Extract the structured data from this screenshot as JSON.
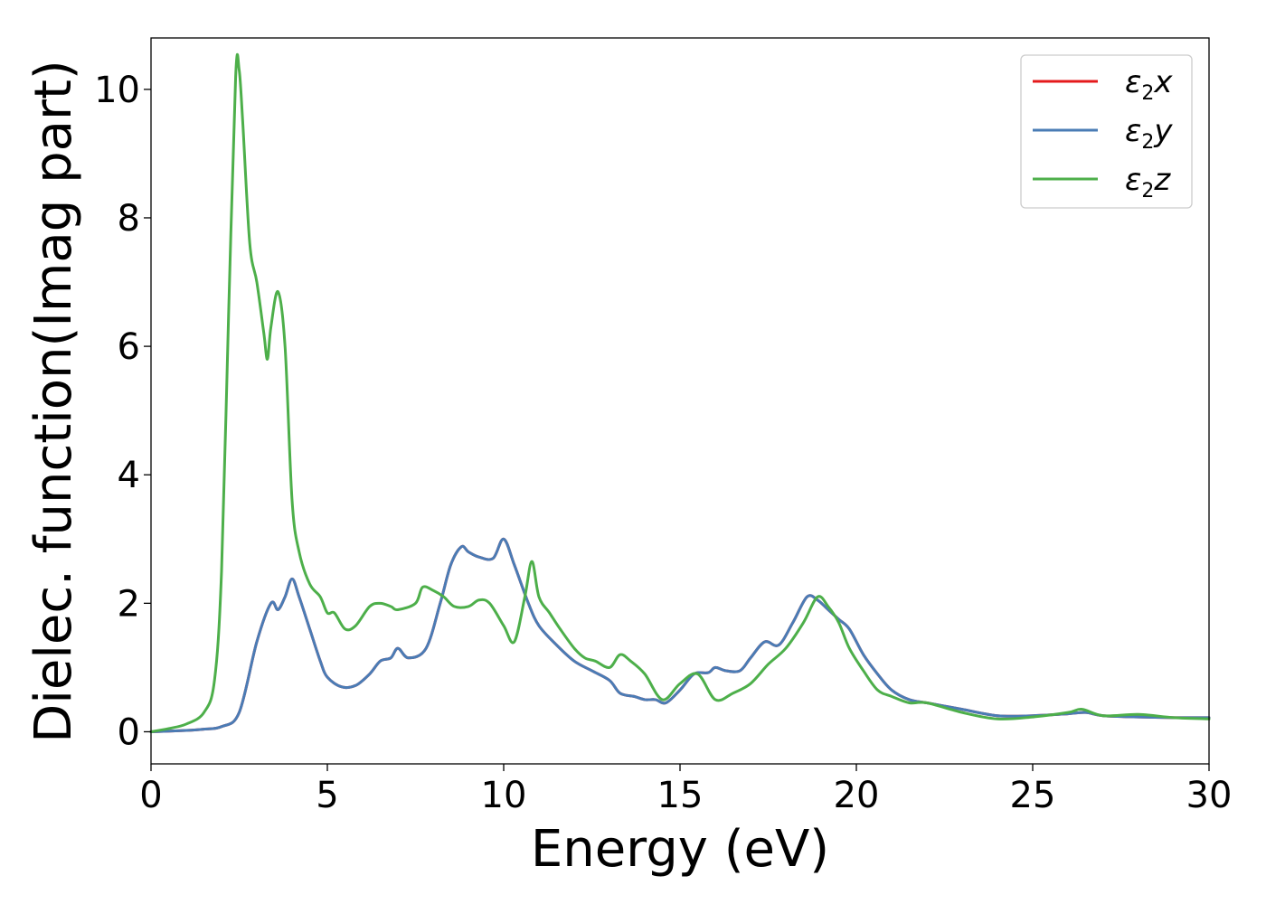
{
  "chart_data": {
    "type": "line",
    "title": "",
    "xlabel": "Energy (eV)",
    "ylabel": "Dielec. function(Imag part)",
    "xlim": [
      0,
      30
    ],
    "ylim": [
      -0.5,
      10.8
    ],
    "xticks": [
      0,
      5,
      10,
      15,
      20,
      25,
      30
    ],
    "yticks": [
      0,
      2,
      4,
      6,
      8,
      10
    ],
    "grid": false,
    "legend_position": "top-right",
    "series": [
      {
        "name": "ε2x",
        "legend_base": "ε",
        "legend_sub": "2",
        "legend_var": "x",
        "color": "#e41a1c",
        "x": [
          0,
          1,
          1.5,
          2,
          2.5,
          3,
          3.4,
          3.6,
          3.8,
          4.0,
          4.2,
          4.5,
          4.8,
          5.0,
          5.4,
          5.8,
          6.2,
          6.5,
          6.8,
          7.0,
          7.3,
          7.8,
          8.2,
          8.5,
          8.8,
          9.0,
          9.3,
          9.7,
          10.0,
          10.3,
          10.7,
          11.0,
          11.5,
          12.0,
          12.5,
          13.0,
          13.3,
          13.7,
          14.0,
          14.3,
          14.6,
          15.0,
          15.4,
          15.8,
          16.0,
          16.3,
          16.7,
          17.0,
          17.4,
          17.8,
          18.2,
          18.6,
          18.9,
          19.2,
          19.5,
          19.8,
          20.2,
          20.6,
          21.0,
          21.5,
          22.0,
          22.5,
          23.0,
          24.0,
          25.0,
          26.0,
          26.5,
          27.0,
          28.0,
          29.0,
          30.0
        ],
        "values": [
          0.0,
          0.02,
          0.04,
          0.08,
          0.3,
          1.4,
          2.0,
          1.9,
          2.1,
          2.38,
          2.1,
          1.6,
          1.1,
          0.85,
          0.7,
          0.72,
          0.9,
          1.1,
          1.15,
          1.3,
          1.15,
          1.3,
          2.0,
          2.6,
          2.88,
          2.8,
          2.72,
          2.7,
          3.0,
          2.6,
          2.0,
          1.65,
          1.35,
          1.1,
          0.95,
          0.8,
          0.6,
          0.55,
          0.5,
          0.5,
          0.45,
          0.65,
          0.9,
          0.92,
          1.0,
          0.95,
          0.95,
          1.15,
          1.4,
          1.35,
          1.7,
          2.1,
          2.05,
          1.9,
          1.75,
          1.6,
          1.2,
          0.9,
          0.65,
          0.5,
          0.45,
          0.4,
          0.35,
          0.25,
          0.25,
          0.28,
          0.3,
          0.25,
          0.23,
          0.22,
          0.22
        ]
      },
      {
        "name": "ε2y",
        "legend_base": "ε",
        "legend_sub": "2",
        "legend_var": "y",
        "color": "#4a7cb5",
        "x": [
          0,
          1,
          1.5,
          2,
          2.5,
          3,
          3.4,
          3.6,
          3.8,
          4.0,
          4.2,
          4.5,
          4.8,
          5.0,
          5.4,
          5.8,
          6.2,
          6.5,
          6.8,
          7.0,
          7.3,
          7.8,
          8.2,
          8.5,
          8.8,
          9.0,
          9.3,
          9.7,
          10.0,
          10.3,
          10.7,
          11.0,
          11.5,
          12.0,
          12.5,
          13.0,
          13.3,
          13.7,
          14.0,
          14.3,
          14.6,
          15.0,
          15.4,
          15.8,
          16.0,
          16.3,
          16.7,
          17.0,
          17.4,
          17.8,
          18.2,
          18.6,
          18.9,
          19.2,
          19.5,
          19.8,
          20.2,
          20.6,
          21.0,
          21.5,
          22.0,
          22.5,
          23.0,
          24.0,
          25.0,
          26.0,
          26.5,
          27.0,
          28.0,
          29.0,
          30.0
        ],
        "values": [
          0.0,
          0.02,
          0.04,
          0.08,
          0.3,
          1.4,
          2.0,
          1.9,
          2.1,
          2.38,
          2.1,
          1.6,
          1.1,
          0.85,
          0.7,
          0.72,
          0.9,
          1.1,
          1.15,
          1.3,
          1.15,
          1.3,
          2.0,
          2.6,
          2.88,
          2.8,
          2.72,
          2.7,
          3.0,
          2.6,
          2.0,
          1.65,
          1.35,
          1.1,
          0.95,
          0.8,
          0.6,
          0.55,
          0.5,
          0.5,
          0.45,
          0.65,
          0.9,
          0.92,
          1.0,
          0.95,
          0.95,
          1.15,
          1.4,
          1.35,
          1.7,
          2.1,
          2.05,
          1.9,
          1.75,
          1.6,
          1.2,
          0.9,
          0.65,
          0.5,
          0.45,
          0.4,
          0.35,
          0.25,
          0.25,
          0.28,
          0.3,
          0.25,
          0.23,
          0.22,
          0.22
        ]
      },
      {
        "name": "ε2z",
        "legend_base": "ε",
        "legend_sub": "2",
        "legend_var": "z",
        "color": "#4daf4a",
        "x": [
          0,
          0.5,
          1.0,
          1.5,
          1.8,
          2.0,
          2.2,
          2.4,
          2.5,
          2.6,
          2.8,
          3.0,
          3.2,
          3.3,
          3.4,
          3.6,
          3.8,
          4.0,
          4.2,
          4.5,
          4.8,
          5.0,
          5.2,
          5.5,
          5.8,
          6.2,
          6.5,
          6.8,
          7.0,
          7.5,
          7.7,
          8.0,
          8.3,
          8.6,
          9.0,
          9.3,
          9.6,
          10.0,
          10.3,
          10.6,
          10.8,
          11.0,
          11.3,
          11.6,
          12.0,
          12.3,
          12.6,
          13.0,
          13.3,
          13.6,
          14.0,
          14.5,
          15.0,
          15.5,
          16.0,
          16.5,
          17.0,
          17.5,
          18.0,
          18.5,
          18.9,
          19.2,
          19.5,
          19.8,
          20.2,
          20.6,
          21.0,
          21.5,
          22.0,
          23.0,
          24.0,
          25.0,
          26.0,
          26.4,
          27.0,
          28.0,
          29.0,
          30.0
        ],
        "values": [
          0.0,
          0.05,
          0.12,
          0.3,
          0.8,
          2.5,
          6.5,
          10.2,
          10.3,
          9.5,
          7.6,
          7.0,
          6.2,
          5.8,
          6.3,
          6.85,
          6.0,
          3.6,
          2.8,
          2.3,
          2.1,
          1.85,
          1.85,
          1.6,
          1.65,
          1.95,
          2.0,
          1.95,
          1.9,
          2.0,
          2.25,
          2.2,
          2.1,
          1.95,
          1.95,
          2.05,
          2.0,
          1.65,
          1.4,
          2.1,
          2.65,
          2.1,
          1.85,
          1.6,
          1.3,
          1.15,
          1.1,
          1.0,
          1.2,
          1.1,
          0.9,
          0.5,
          0.75,
          0.9,
          0.5,
          0.6,
          0.75,
          1.05,
          1.3,
          1.7,
          2.1,
          1.95,
          1.7,
          1.3,
          0.95,
          0.65,
          0.55,
          0.45,
          0.45,
          0.3,
          0.2,
          0.23,
          0.3,
          0.35,
          0.25,
          0.27,
          0.22,
          0.2
        ]
      }
    ]
  }
}
